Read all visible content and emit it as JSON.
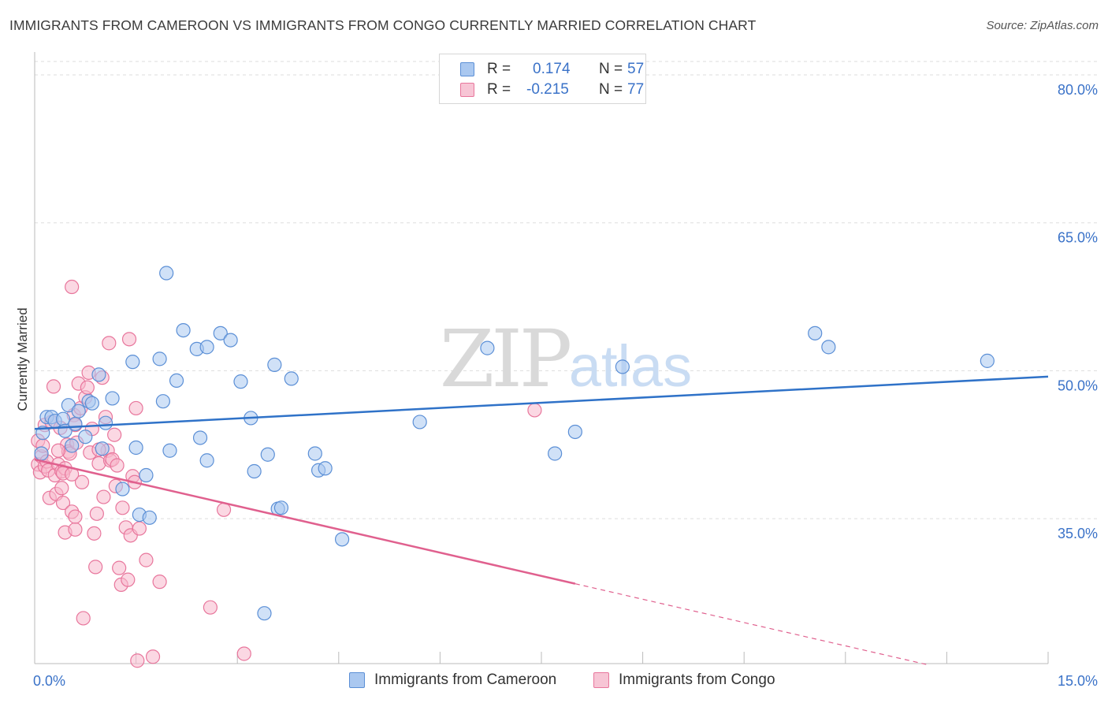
{
  "title": "IMMIGRANTS FROM CAMEROON VS IMMIGRANTS FROM CONGO CURRENTLY MARRIED CORRELATION CHART",
  "source": "Source: ZipAtlas.com",
  "watermark": {
    "zip": "ZIP",
    "atlas": "atlas"
  },
  "legend": {
    "rows": [
      {
        "r_label": "R =",
        "r_value": "0.174",
        "n_label": "N =",
        "n_value": "57"
      },
      {
        "r_label": "R =",
        "r_value": "-0.215",
        "n_label": "N =",
        "n_value": "77"
      }
    ]
  },
  "bottom_legend": {
    "cameroon": "Immigrants from Cameroon",
    "congo": "Immigrants from Congo"
  },
  "colors": {
    "blue_fill": "#aac8f0",
    "blue_stroke": "#5b8fd6",
    "blue_line": "#2f72c8",
    "pink_fill": "#f7b8cc",
    "pink_stroke": "#e8769c",
    "pink_line": "#e0608e",
    "grid": "#dddddd",
    "tick_text": "#3a72c8"
  },
  "chart_data": {
    "type": "scatter",
    "title": "IMMIGRANTS FROM CAMEROON VS IMMIGRANTS FROM CONGO CURRENTLY MARRIED CORRELATION CHART",
    "xlabel": "",
    "ylabel": "Currently Married",
    "xlim": [
      0,
      15
    ],
    "ylim": [
      20.3,
      82
    ],
    "x_tick_labels": [
      "0.0%",
      "15.0%"
    ],
    "y_ticks": [
      35,
      50,
      65,
      80
    ],
    "y_tick_labels": [
      "35.0%",
      "50.0%",
      "65.0%",
      "80.0%"
    ],
    "series": [
      {
        "name": "Immigrants from Cameroon",
        "r": 0.174,
        "n": 57,
        "trend": {
          "x0": 0,
          "y0": 44.1,
          "x1": 15,
          "y1": 49.4
        },
        "points": [
          [
            0.1,
            41.6
          ],
          [
            0.12,
            43.7
          ],
          [
            0.18,
            45.3
          ],
          [
            0.25,
            45.3
          ],
          [
            0.3,
            44.9
          ],
          [
            0.42,
            45.1
          ],
          [
            0.45,
            43.9
          ],
          [
            0.5,
            46.5
          ],
          [
            0.55,
            42.4
          ],
          [
            0.65,
            45.9
          ],
          [
            0.75,
            43.3
          ],
          [
            0.8,
            46.9
          ],
          [
            0.85,
            46.7
          ],
          [
            0.95,
            49.6
          ],
          [
            1.0,
            42.1
          ],
          [
            1.05,
            44.7
          ],
          [
            1.15,
            47.2
          ],
          [
            1.3,
            38.0
          ],
          [
            1.45,
            50.9
          ],
          [
            1.5,
            42.2
          ],
          [
            1.55,
            35.4
          ],
          [
            1.65,
            39.4
          ],
          [
            1.7,
            35.1
          ],
          [
            1.85,
            51.2
          ],
          [
            1.9,
            46.9
          ],
          [
            1.95,
            59.9
          ],
          [
            2.0,
            41.9
          ],
          [
            2.1,
            49.0
          ],
          [
            2.2,
            54.1
          ],
          [
            2.4,
            52.2
          ],
          [
            2.45,
            43.2
          ],
          [
            2.55,
            52.4
          ],
          [
            2.55,
            40.9
          ],
          [
            2.75,
            53.8
          ],
          [
            2.9,
            53.1
          ],
          [
            3.05,
            48.9
          ],
          [
            3.2,
            45.2
          ],
          [
            3.25,
            39.8
          ],
          [
            3.45,
            41.5
          ],
          [
            3.55,
            50.6
          ],
          [
            3.6,
            36.0
          ],
          [
            3.65,
            36.1
          ],
          [
            3.8,
            49.2
          ],
          [
            4.15,
            41.6
          ],
          [
            4.2,
            39.9
          ],
          [
            4.3,
            40.1
          ],
          [
            4.55,
            32.9
          ],
          [
            3.4,
            25.4
          ],
          [
            5.7,
            44.8
          ],
          [
            6.7,
            52.3
          ],
          [
            7.7,
            41.6
          ],
          [
            8.0,
            43.8
          ],
          [
            8.7,
            50.4
          ],
          [
            11.55,
            53.8
          ],
          [
            11.75,
            52.4
          ],
          [
            14.1,
            51.0
          ],
          [
            0.6,
            44.6
          ]
        ]
      },
      {
        "name": "Immigrants from Congo",
        "r": -0.215,
        "n": 77,
        "trend": {
          "x0": 0,
          "y0": 41.0,
          "x1": 8.0,
          "y1": 28.4,
          "x_dash_end": 13.2
        },
        "points": [
          [
            0.05,
            42.9
          ],
          [
            0.05,
            40.5
          ],
          [
            0.08,
            39.7
          ],
          [
            0.1,
            41.3
          ],
          [
            0.12,
            42.4
          ],
          [
            0.15,
            40.3
          ],
          [
            0.15,
            44.5
          ],
          [
            0.18,
            40.8
          ],
          [
            0.2,
            39.9
          ],
          [
            0.22,
            37.1
          ],
          [
            0.25,
            44.8
          ],
          [
            0.28,
            48.4
          ],
          [
            0.3,
            39.4
          ],
          [
            0.32,
            37.5
          ],
          [
            0.35,
            40.5
          ],
          [
            0.38,
            44.2
          ],
          [
            0.4,
            38.1
          ],
          [
            0.4,
            39.8
          ],
          [
            0.42,
            36.6
          ],
          [
            0.45,
            40.1
          ],
          [
            0.45,
            33.6
          ],
          [
            0.48,
            42.5
          ],
          [
            0.5,
            41.8
          ],
          [
            0.52,
            41.6
          ],
          [
            0.55,
            58.5
          ],
          [
            0.55,
            35.7
          ],
          [
            0.58,
            45.5
          ],
          [
            0.6,
            44.5
          ],
          [
            0.6,
            33.9
          ],
          [
            0.62,
            42.7
          ],
          [
            0.65,
            48.7
          ],
          [
            0.68,
            46.2
          ],
          [
            0.7,
            38.7
          ],
          [
            0.72,
            24.9
          ],
          [
            0.75,
            47.3
          ],
          [
            0.78,
            48.3
          ],
          [
            0.8,
            49.8
          ],
          [
            0.82,
            41.7
          ],
          [
            0.85,
            44.1
          ],
          [
            0.88,
            33.5
          ],
          [
            0.9,
            30.1
          ],
          [
            0.92,
            35.5
          ],
          [
            0.95,
            40.6
          ],
          [
            1.0,
            49.3
          ],
          [
            1.02,
            37.2
          ],
          [
            1.05,
            45.3
          ],
          [
            1.08,
            41.9
          ],
          [
            1.1,
            52.8
          ],
          [
            1.12,
            40.9
          ],
          [
            1.15,
            41.0
          ],
          [
            1.18,
            43.5
          ],
          [
            1.2,
            38.3
          ],
          [
            1.22,
            40.4
          ],
          [
            1.25,
            30.0
          ],
          [
            1.28,
            28.3
          ],
          [
            1.3,
            36.1
          ],
          [
            1.35,
            34.1
          ],
          [
            1.38,
            28.8
          ],
          [
            1.4,
            53.2
          ],
          [
            1.42,
            33.3
          ],
          [
            1.45,
            39.3
          ],
          [
            1.48,
            38.7
          ],
          [
            1.5,
            46.2
          ],
          [
            1.52,
            20.6
          ],
          [
            1.55,
            34.0
          ],
          [
            1.65,
            30.8
          ],
          [
            1.75,
            21.0
          ],
          [
            1.85,
            28.6
          ],
          [
            2.6,
            26.0
          ],
          [
            2.8,
            35.9
          ],
          [
            3.1,
            21.3
          ],
          [
            7.4,
            46.0
          ],
          [
            0.35,
            41.9
          ],
          [
            0.42,
            39.6
          ],
          [
            0.55,
            39.5
          ],
          [
            0.6,
            35.2
          ],
          [
            0.95,
            42.0
          ]
        ]
      }
    ]
  }
}
